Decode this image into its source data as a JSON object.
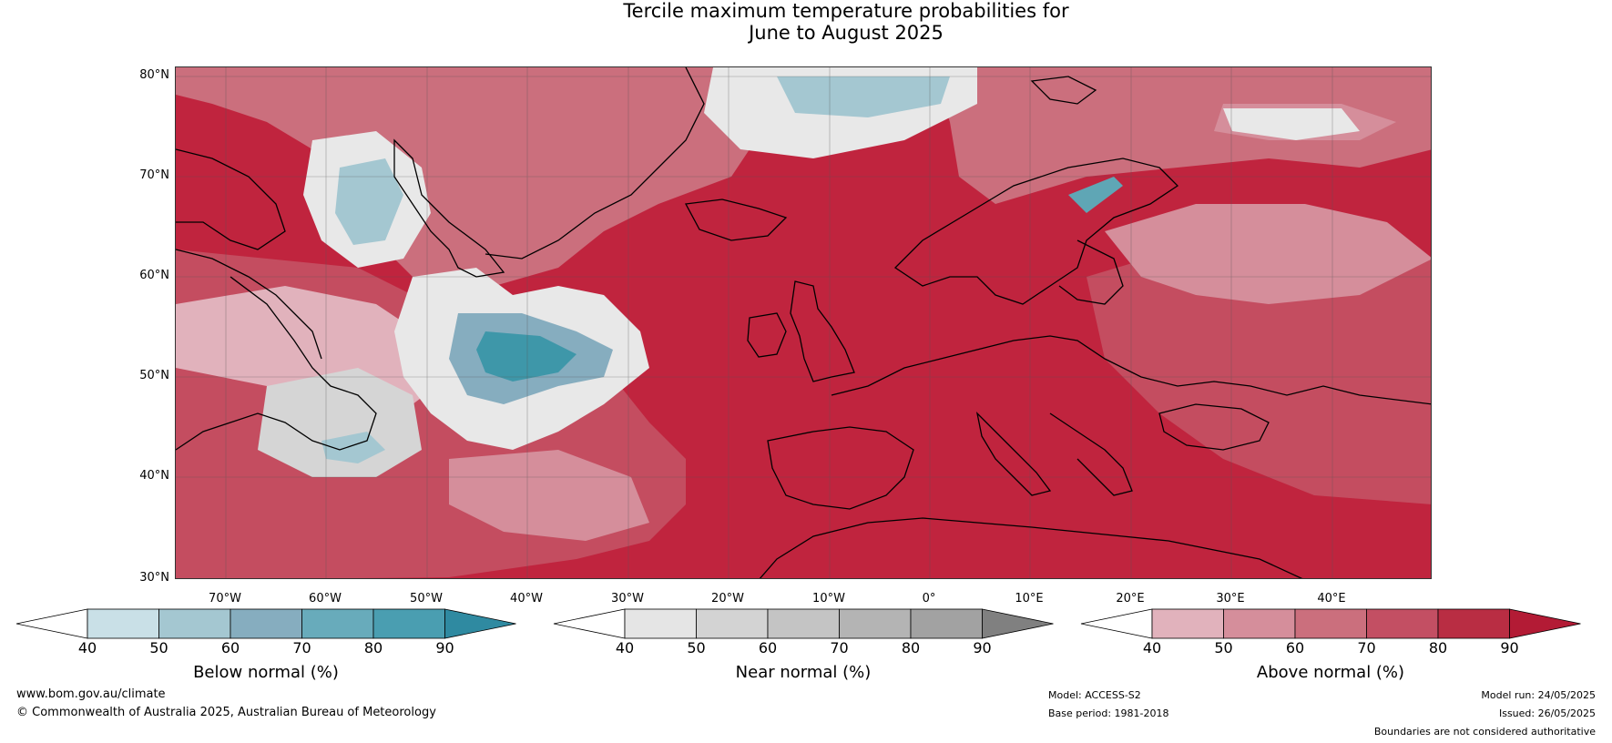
{
  "title": {
    "line1": "Tercile maximum temperature probabilities for",
    "line2": "June to August 2025"
  },
  "map": {
    "region": "North Atlantic and Europe",
    "lat_labels": [
      "80°N",
      "70°N",
      "60°N",
      "50°N",
      "40°N",
      "30°N"
    ],
    "lon_labels": [
      "70°W",
      "60°W",
      "50°W",
      "40°W",
      "30°W",
      "20°W",
      "10°W",
      "0°",
      "10°E",
      "20°E",
      "30°E",
      "40°E"
    ],
    "colors": {
      "ocean_base": "#c0243e",
      "above_40": "#e1b2bc",
      "above_50": "#d58e9b",
      "above_60": "#cb6f7d",
      "above_70": "#c44d60",
      "above_80": "#b9293f",
      "near_40": "#e8e8e8",
      "near_50": "#d5d5d5",
      "near_60": "#c2c2c2",
      "below_40": "#c9e0e7",
      "below_50": "#a4c7d1",
      "below_60": "#86adbf",
      "below_70": "#5fa6b5",
      "below_80": "#3e97a9",
      "coastline": "#000000",
      "border": "#808080"
    }
  },
  "colorbars": [
    {
      "name": "below",
      "title": "Below normal (%)",
      "ticks": [
        "40",
        "50",
        "60",
        "70",
        "80",
        "90"
      ],
      "colors": [
        "#ffffff",
        "#c9e0e7",
        "#a4c7d1",
        "#86adbf",
        "#68abbb",
        "#4a9eb1",
        "#2f8aa1"
      ]
    },
    {
      "name": "near",
      "title": "Near normal (%)",
      "ticks": [
        "40",
        "50",
        "60",
        "70",
        "80",
        "90"
      ],
      "colors": [
        "#ffffff",
        "#e5e5e5",
        "#d3d3d3",
        "#c4c4c4",
        "#b4b4b4",
        "#a2a2a2",
        "#808080"
      ]
    },
    {
      "name": "above",
      "title": "Above normal (%)",
      "ticks": [
        "40",
        "50",
        "60",
        "70",
        "80",
        "90"
      ],
      "colors": [
        "#ffffff",
        "#e1b2bc",
        "#d58e9b",
        "#cb6f7d",
        "#c34f63",
        "#b92d43",
        "#b31b35"
      ]
    }
  ],
  "footer": {
    "website": "www.bom.gov.au/climate",
    "copyright": "© Commonwealth of Australia 2025, Australian Bureau of Meteorology",
    "model": "Model: ACCESS-S2",
    "base_period": "Base period: 1981-2018",
    "model_run": "Model run: 24/05/2025",
    "issued": "Issued: 26/05/2025",
    "disclaimer": "Boundaries are not considered authoritative"
  }
}
